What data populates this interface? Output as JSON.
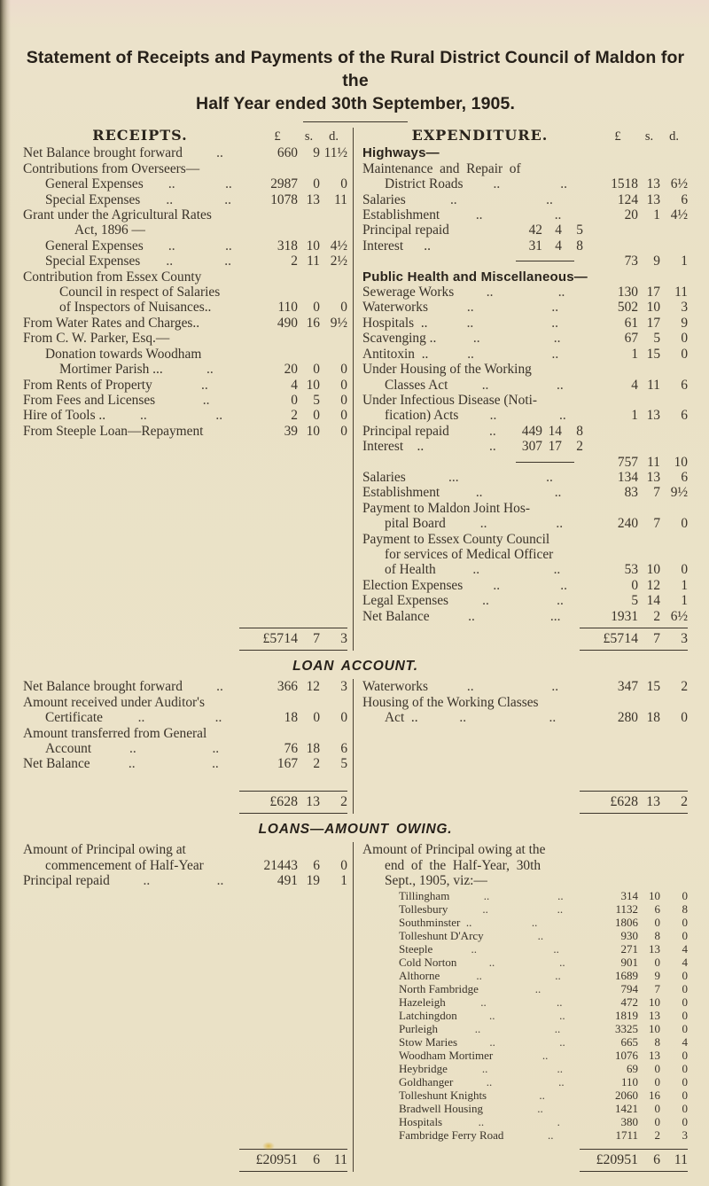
{
  "title": {
    "line1": "Statement of Receipts and Payments of the Rural District Council of Maldon for the",
    "line2": "Half Year ended 30th September, 1905."
  },
  "currency": {
    "pounds": "£",
    "shillings": "s.",
    "pence": "d."
  },
  "general": {
    "receipts": {
      "header": "RECEIPTS.",
      "rows": [
        {
          "label": "Net Balance brought forward",
          "leaders": [
            ".."
          ],
          "l": "660",
          "s": "9",
          "d": "11½"
        },
        {
          "label": "Contributions from Overseers—"
        },
        {
          "indent": 1,
          "label": "General Expenses",
          "leaders": [
            "..",
            ".."
          ],
          "l": "2987",
          "s": "0",
          "d": "0"
        },
        {
          "indent": 1,
          "label": "Special Expenses",
          "leaders": [
            "..",
            ".."
          ],
          "l": "1078",
          "s": "13",
          "d": "11"
        },
        {
          "label": "Grant under the Agricultural Rates"
        },
        {
          "indent": 3,
          "label": "Act, 1896 —"
        },
        {
          "indent": 1,
          "label": "General Expenses",
          "leaders": [
            "..",
            ".."
          ],
          "l": "318",
          "s": "10",
          "d": "4½"
        },
        {
          "indent": 1,
          "label": "Special Expenses",
          "leaders": [
            "..",
            ".."
          ],
          "l": "2",
          "s": "11",
          "d": "2½"
        },
        {
          "label": "Contribution from Essex County"
        },
        {
          "indent": 2,
          "label": "Council in respect of Salaries"
        },
        {
          "indent": 2,
          "label": "of Inspectors of Nuisances..",
          "l": "110",
          "s": "0",
          "d": "0"
        },
        {
          "label": "From Water Rates and Charges..",
          "l": "490",
          "s": "16",
          "d": "9½"
        },
        {
          "label": "From C. W. Parker, Esq.—"
        },
        {
          "indent": 1,
          "label": "Donation towards Woodham"
        },
        {
          "indent": 2,
          "label": "Mortimer Parish ...",
          "leaders": [
            ".."
          ],
          "l": "20",
          "s": "0",
          "d": "0"
        },
        {
          "label": "From Rents of Property",
          "leaders": [
            ".."
          ],
          "l": "4",
          "s": "10",
          "d": "0"
        },
        {
          "label": "From Fees and Licenses",
          "leaders": [
            ".."
          ],
          "l": "0",
          "s": "5",
          "d": "0"
        },
        {
          "label": "Hire of Tools ..",
          "leaders": [
            "..",
            ".."
          ],
          "l": "2",
          "s": "0",
          "d": "0"
        },
        {
          "label": "From Steeple Loan—Repayment",
          "l": "39",
          "s": "10",
          "d": "0"
        }
      ],
      "total": {
        "l": "£5714",
        "s": "7",
        "d": "3"
      }
    },
    "expenditure": {
      "header": "EXPENDITURE.",
      "rows": [
        {
          "label": "Highways—",
          "bold": true
        },
        {
          "label": "Maintenance  and  Repair  of"
        },
        {
          "indent": 1,
          "label": "District Roads",
          "leaders": [
            "..",
            ".."
          ],
          "l": "1518",
          "s": "13",
          "d": "6½"
        },
        {
          "label": "Salaries",
          "leaders": [
            "..",
            ".."
          ],
          "l": "124",
          "s": "13",
          "d": "6"
        },
        {
          "label": "Establishment",
          "leaders": [
            "..",
            ".."
          ],
          "l": "20",
          "s": "1",
          "d": "4½"
        },
        {
          "label": "Principal repaid",
          "inner": {
            "l": "42",
            "s": "4",
            "d": "5"
          }
        },
        {
          "label": "Interest      ..",
          "inner": {
            "l": "31",
            "s": "4",
            "d": "8"
          }
        },
        {
          "innerRule": true,
          "l": "73",
          "s": "9",
          "d": "1"
        },
        {
          "label": "Public Health and Miscellaneous—",
          "bold": true
        },
        {
          "label": "Sewerage Works",
          "leaders": [
            "..",
            ".."
          ],
          "l": "130",
          "s": "17",
          "d": "11"
        },
        {
          "label": "Waterworks",
          "leaders": [
            "..",
            ".."
          ],
          "l": "502",
          "s": "10",
          "d": "3"
        },
        {
          "label": "Hospitals  ..",
          "leaders": [
            "..",
            ".."
          ],
          "l": "61",
          "s": "17",
          "d": "9"
        },
        {
          "label": "Scavenging ..",
          "leaders": [
            "..",
            ".."
          ],
          "l": "67",
          "s": "5",
          "d": "0"
        },
        {
          "label": "Antitoxin  ..",
          "leaders": [
            "..",
            ".."
          ],
          "l": "1",
          "s": "15",
          "d": "0"
        },
        {
          "label": "Under Housing of the Working"
        },
        {
          "indent": 1,
          "label": "Classes Act",
          "leaders": [
            "..",
            ".."
          ],
          "l": "4",
          "s": "11",
          "d": "6"
        },
        {
          "label": "Under Infectious Disease (Noti-"
        },
        {
          "indent": 1,
          "label": "fication) Acts",
          "leaders": [
            "..",
            ".."
          ],
          "l": "1",
          "s": "13",
          "d": "6"
        },
        {
          "label": "Principal repaid",
          "inner": {
            "leader": "..",
            "l": "449",
            "s": "14",
            "d": "8"
          }
        },
        {
          "label": "Interest    ..",
          "inner": {
            "leader": "..",
            "l": "307",
            "s": "17",
            "d": "2"
          }
        },
        {
          "innerRule": true,
          "l": "757",
          "s": "11",
          "d": "10"
        },
        {
          "label": "Salaries",
          "leaders": [
            "...",
            ".."
          ],
          "l": "134",
          "s": "13",
          "d": "6"
        },
        {
          "label": "Establishment",
          "leaders": [
            "..",
            ".."
          ],
          "l": "83",
          "s": "7",
          "d": "9½"
        },
        {
          "label": "Payment to Maldon Joint Hos-"
        },
        {
          "indent": 1,
          "label": "pital Board",
          "leaders": [
            "..",
            ".."
          ],
          "l": "240",
          "s": "7",
          "d": "0"
        },
        {
          "label": "Payment to Essex County Council"
        },
        {
          "indent": 1,
          "label": "for services of Medical Officer"
        },
        {
          "indent": 1,
          "label": "of Health",
          "leaders": [
            "..",
            ".."
          ],
          "l": "53",
          "s": "10",
          "d": "0"
        },
        {
          "label": "Election Expenses",
          "leaders": [
            "..",
            ".."
          ],
          "l": "0",
          "s": "12",
          "d": "1"
        },
        {
          "label": "Legal Expenses",
          "leaders": [
            "..",
            ".."
          ],
          "l": "5",
          "s": "14",
          "d": "1"
        },
        {
          "label": "Net Balance",
          "leaders": [
            "..",
            "..."
          ],
          "l": "1931",
          "s": "2",
          "d": "6½"
        }
      ],
      "total": {
        "l": "£5714",
        "s": "7",
        "d": "3"
      }
    }
  },
  "loan_account": {
    "header": "LOAN ACCOUNT.",
    "left": {
      "rows": [
        {
          "label": "Net Balance brought forward",
          "leaders": [
            ".."
          ],
          "l": "366",
          "s": "12",
          "d": "3"
        },
        {
          "label": "Amount received under Auditor's"
        },
        {
          "indent": 1,
          "label": "Certificate",
          "leaders": [
            "..",
            ".."
          ],
          "l": "18",
          "s": "0",
          "d": "0"
        },
        {
          "label": "Amount transferred from General"
        },
        {
          "indent": 1,
          "label": "Account",
          "leaders": [
            "..",
            ".."
          ],
          "l": "76",
          "s": "18",
          "d": "6"
        },
        {
          "label": "Net Balance",
          "leaders": [
            "..",
            ".."
          ],
          "l": "167",
          "s": "2",
          "d": "5"
        }
      ],
      "total": {
        "l": "£628",
        "s": "13",
        "d": "2"
      }
    },
    "right": {
      "rows": [
        {
          "label": "Waterworks",
          "leaders": [
            "..",
            ".."
          ],
          "l": "347",
          "s": "15",
          "d": "2"
        },
        {
          "label": "Housing of the Working Classes"
        },
        {
          "indent": 1,
          "label": "Act  ..",
          "leaders": [
            "..",
            ".."
          ],
          "l": "280",
          "s": "18",
          "d": "0"
        }
      ],
      "total": {
        "l": "£628",
        "s": "13",
        "d": "2"
      }
    }
  },
  "loans_owing": {
    "header": "LOANS—AMOUNT OWING.",
    "left": {
      "rows": [
        {
          "label": "Amount of Principal owing at"
        },
        {
          "indent": 1,
          "label": "commencement of Half-Year",
          "l": "21443",
          "s": "6",
          "d": "0"
        },
        {
          "label": "Principal repaid",
          "leaders": [
            "..",
            ".."
          ],
          "l": "491",
          "s": "19",
          "d": "1"
        }
      ],
      "total": {
        "l": "£20951",
        "s": "6",
        "d": "11"
      }
    },
    "right": {
      "rows": [
        {
          "label": "Amount of Principal owing at the"
        },
        {
          "indent": 1,
          "label": "end  of  the  Half-Year,  30th"
        },
        {
          "indent": 1,
          "label": "Sept., 1905, viz:—"
        },
        {
          "indent": 2,
          "small": true,
          "label": "Tillingham",
          "leaders": [
            "..",
            ".."
          ],
          "l": "314",
          "s": "10",
          "d": "0"
        },
        {
          "indent": 2,
          "small": true,
          "label": "Tollesbury",
          "leaders": [
            "..",
            ".."
          ],
          "l": "1132",
          "s": "6",
          "d": "8"
        },
        {
          "indent": 2,
          "small": true,
          "label": "Southminster  ..",
          "leaders": [
            ".."
          ],
          "l": "1806",
          "s": "0",
          "d": "0"
        },
        {
          "indent": 2,
          "small": true,
          "label": "Tolleshunt D'Arcy",
          "leaders": [
            ".."
          ],
          "l": "930",
          "s": "8",
          "d": "0"
        },
        {
          "indent": 2,
          "small": true,
          "label": "Steeple",
          "leaders": [
            "..",
            ".."
          ],
          "l": "271",
          "s": "13",
          "d": "4"
        },
        {
          "indent": 2,
          "small": true,
          "label": "Cold Norton",
          "leaders": [
            "..",
            ".."
          ],
          "l": "901",
          "s": "0",
          "d": "4"
        },
        {
          "indent": 2,
          "small": true,
          "label": "Althorne",
          "leaders": [
            "..",
            ".."
          ],
          "l": "1689",
          "s": "9",
          "d": "0"
        },
        {
          "indent": 2,
          "small": true,
          "label": "North Fambridge",
          "leaders": [
            ".."
          ],
          "l": "794",
          "s": "7",
          "d": "0"
        },
        {
          "indent": 2,
          "small": true,
          "label": "Hazeleigh",
          "leaders": [
            "..",
            ".."
          ],
          "l": "472",
          "s": "10",
          "d": "0"
        },
        {
          "indent": 2,
          "small": true,
          "label": "Latchingdon",
          "leaders": [
            "..",
            ".."
          ],
          "l": "1819",
          "s": "13",
          "d": "0"
        },
        {
          "indent": 2,
          "small": true,
          "label": "Purleigh",
          "leaders": [
            "..",
            ".."
          ],
          "l": "3325",
          "s": "10",
          "d": "0"
        },
        {
          "indent": 2,
          "small": true,
          "label": "Stow Maries",
          "leaders": [
            "..",
            ".."
          ],
          "l": "665",
          "s": "8",
          "d": "4"
        },
        {
          "indent": 2,
          "small": true,
          "label": "Woodham Mortimer",
          "leaders": [
            ".."
          ],
          "l": "1076",
          "s": "13",
          "d": "0"
        },
        {
          "indent": 2,
          "small": true,
          "label": "Heybridge",
          "leaders": [
            "..",
            ".."
          ],
          "l": "69",
          "s": "0",
          "d": "0"
        },
        {
          "indent": 2,
          "small": true,
          "label": "Goldhanger",
          "leaders": [
            "..",
            ".."
          ],
          "l": "110",
          "s": "0",
          "d": "0"
        },
        {
          "indent": 2,
          "small": true,
          "label": "Tolleshunt Knights",
          "leaders": [
            ".."
          ],
          "l": "2060",
          "s": "16",
          "d": "0"
        },
        {
          "indent": 2,
          "small": true,
          "label": "Bradwell Housing",
          "leaders": [
            ".."
          ],
          "l": "1421",
          "s": "0",
          "d": "0"
        },
        {
          "indent": 2,
          "small": true,
          "label": "Hospitals",
          "leaders": [
            "..",
            "."
          ],
          "l": "380",
          "s": "0",
          "d": "0"
        },
        {
          "indent": 2,
          "small": true,
          "label": "Fambridge Ferry Road",
          "leaders": [
            ".."
          ],
          "l": "1711",
          "s": "2",
          "d": "3"
        }
      ],
      "total": {
        "l": "£20951",
        "s": "6",
        "d": "11"
      }
    }
  }
}
